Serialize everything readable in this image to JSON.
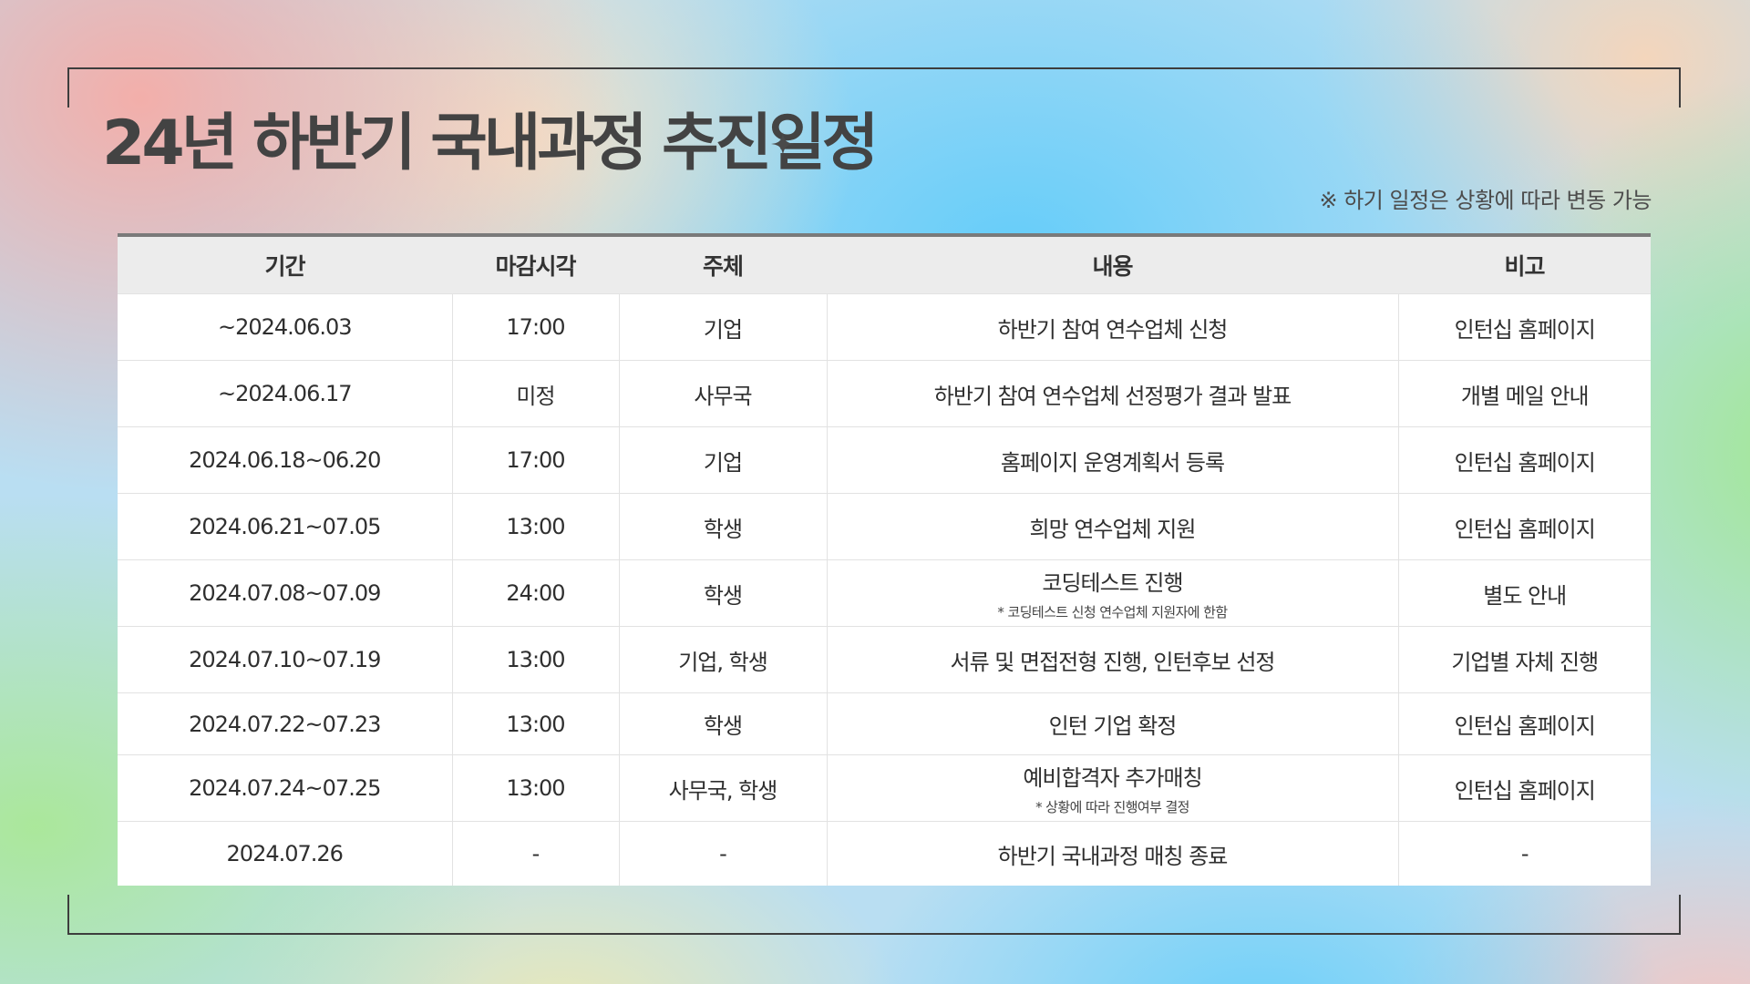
{
  "title": "24년 하반기 국내과정 추진일정",
  "note": "※ 하기 일정은 상황에 따라 변동 가능",
  "table": {
    "headers": [
      "기간",
      "마감시각",
      "주체",
      "내용",
      "비고"
    ],
    "rows": [
      {
        "period": "~2024.06.03",
        "deadline": "17:00",
        "subject": "기업",
        "content": "하반기 참여 연수업체 신청",
        "content_note": "",
        "remark": "인턴십 홈페이지"
      },
      {
        "period": "~2024.06.17",
        "deadline": "미정",
        "subject": "사무국",
        "content": "하반기 참여 연수업체 선정평가 결과 발표",
        "content_note": "",
        "remark": "개별 메일 안내"
      },
      {
        "period": "2024.06.18~06.20",
        "deadline": "17:00",
        "subject": "기업",
        "content": "홈페이지 운영계획서 등록",
        "content_note": "",
        "remark": "인턴십 홈페이지"
      },
      {
        "period": "2024.06.21~07.05",
        "deadline": "13:00",
        "subject": "학생",
        "content": "희망 연수업체 지원",
        "content_note": "",
        "remark": "인턴십 홈페이지"
      },
      {
        "period": "2024.07.08~07.09",
        "deadline": "24:00",
        "subject": "학생",
        "content": "코딩테스트 진행",
        "content_note": "* 코딩테스트 신청 연수업체 지원자에 한함",
        "remark": "별도 안내"
      },
      {
        "period": "2024.07.10~07.19",
        "deadline": "13:00",
        "subject": "기업, 학생",
        "content": "서류 및 면접전형 진행, 인턴후보 선정",
        "content_note": "",
        "remark": "기업별 자체 진행"
      },
      {
        "period": "2024.07.22~07.23",
        "deadline": "13:00",
        "subject": "학생",
        "content": "인턴 기업 확정",
        "content_note": "",
        "remark": "인턴십 홈페이지"
      },
      {
        "period": "2024.07.24~07.25",
        "deadline": "13:00",
        "subject": "사무국, 학생",
        "content": "예비합격자 추가매칭",
        "content_note": "* 상황에 따라 진행여부 결정",
        "remark": "인턴십 홈페이지"
      },
      {
        "period": "2024.07.26",
        "deadline": "-",
        "subject": "-",
        "content": "하반기 국내과정 매칭 종료",
        "content_note": "",
        "remark": "-"
      }
    ]
  },
  "icons": {
    "sparkle": "four-point-star-icon"
  },
  "colors": {
    "title": "#434343",
    "header_bg": "#ececec",
    "table_top_border": "#7a7a7a",
    "frame": "#3d3d3d"
  }
}
